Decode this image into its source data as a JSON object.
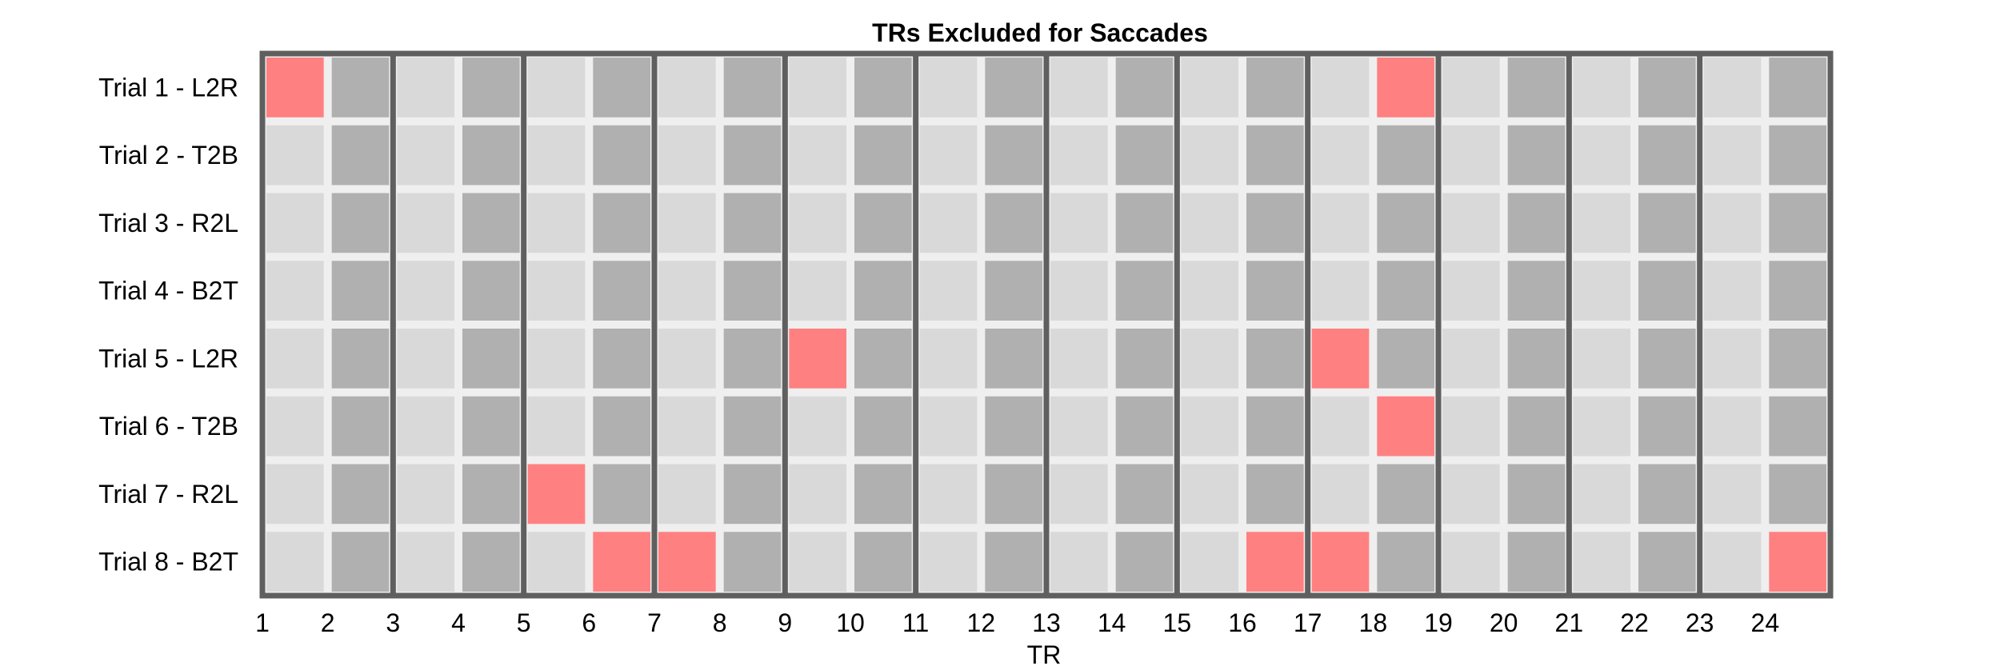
{
  "chart_data": {
    "type": "heatmap",
    "title": "TRs Excluded for Saccades",
    "xlabel": "TR",
    "ylabel": "",
    "x_tick_labels": [
      "1",
      "2",
      "3",
      "4",
      "5",
      "6",
      "7",
      "8",
      "9",
      "10",
      "11",
      "12",
      "13",
      "14",
      "15",
      "16",
      "17",
      "18",
      "19",
      "20",
      "21",
      "22",
      "23",
      "24"
    ],
    "rows": [
      {
        "label": "Trial 1 - L2R",
        "excluded_cells": [
          1,
          18
        ]
      },
      {
        "label": "Trial 2 - T2B",
        "excluded_cells": []
      },
      {
        "label": "Trial 3 - R2L",
        "excluded_cells": []
      },
      {
        "label": "Trial 4 - B2T",
        "excluded_cells": []
      },
      {
        "label": "Trial 5 - L2R",
        "excluded_cells": [
          9,
          17
        ]
      },
      {
        "label": "Trial 6 - T2B",
        "excluded_cells": [
          18
        ]
      },
      {
        "label": "Trial 7 - R2L",
        "excluded_cells": [
          5
        ]
      },
      {
        "label": "Trial 8 - B2T",
        "excluded_cells": [
          6,
          7,
          16,
          17,
          24
        ]
      }
    ],
    "n_cells": 24,
    "tr_boundaries": [
      1,
      3,
      5,
      7,
      9,
      11,
      13,
      15,
      17,
      19,
      21,
      23
    ],
    "legend": "none",
    "grid": true,
    "colors": {
      "excluded": "#ff8080",
      "odd_cell": "#d9d9d9",
      "even_cell": "#b0b0b0",
      "cell_gap": "#efefef",
      "boundary_line": "#5f5f5f",
      "frame": "#5f5f5f",
      "text": "#000000",
      "background": "#ffffff"
    }
  }
}
